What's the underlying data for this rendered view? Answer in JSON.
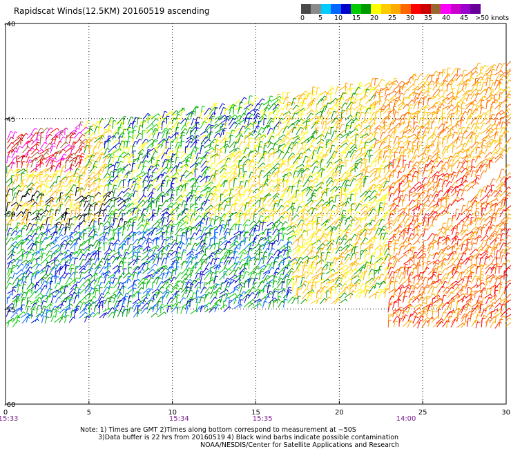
{
  "title": "Rapidscat Winds(12.5KM) 20160519 ascending",
  "colorbar": {
    "colors": [
      "#4a4a4a",
      "#8a8a8a",
      "#00ccff",
      "#0066ff",
      "#0000cc",
      "#00cc00",
      "#009900",
      "#ffff00",
      "#ffcc00",
      "#ffaa00",
      "#ff6600",
      "#ff0000",
      "#cc0000",
      "#996633",
      "#ff00ff",
      "#cc00cc",
      "#9900cc",
      "#660099"
    ],
    "labels": [
      {
        "text": "0",
        "pos": 0
      },
      {
        "text": "5",
        "pos": 1
      },
      {
        "text": "10",
        "pos": 2
      },
      {
        "text": "15",
        "pos": 3
      },
      {
        "text": "20",
        "pos": 4
      },
      {
        "text": "25",
        "pos": 5
      },
      {
        "text": "30",
        "pos": 6
      },
      {
        "text": "35",
        "pos": 7
      },
      {
        "text": "40",
        "pos": 8
      },
      {
        "text": "45",
        "pos": 9
      },
      {
        "text": ">50 knots",
        "pos": 10
      }
    ]
  },
  "axes": {
    "x_ticks": [
      0,
      5,
      10,
      15,
      20,
      25,
      30
    ],
    "y_ticks": [
      -40,
      -45,
      -50,
      -55,
      -60
    ],
    "x_range": [
      0,
      30
    ],
    "y_range": [
      -60,
      -40
    ],
    "grid": "dotted"
  },
  "time_labels": [
    {
      "text": "15:33",
      "x": 0
    },
    {
      "text": "15:34",
      "x": 10.4
    },
    {
      "text": "15:35",
      "x": 15.4
    },
    {
      "text": "14:00",
      "x": 24
    }
  ],
  "notes": [
    "Note: 1) Times are GMT 2)Times along bottom correspond to measurement at −50S",
    "3)Data buffer is 22 hrs from 20160519 4) Black wind barbs indicate possible contamination",
    "NOAA/NESDIS/Center for Satellite Applications and Research"
  ]
}
